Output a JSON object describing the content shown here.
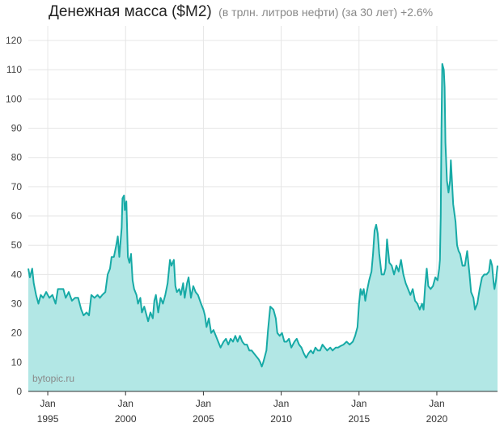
{
  "chart_data": {
    "type": "area",
    "title": "Денежная масса ($M2)",
    "subtitle": "(в трлн. литров нефти) (за 30 лет) +2.6%",
    "watermark": "bytopic.ru",
    "ylim": [
      0,
      125
    ],
    "y_ticks": [
      0,
      10,
      20,
      30,
      40,
      50,
      60,
      70,
      80,
      90,
      100,
      110,
      120
    ],
    "xlim": [
      1993.75,
      2023.9
    ],
    "x_ticks": [
      {
        "x": 1995,
        "month": "Jan",
        "year": "1995"
      },
      {
        "x": 2000,
        "month": "Jan",
        "year": "2000"
      },
      {
        "x": 2005,
        "month": "Jan",
        "year": "2005"
      },
      {
        "x": 2010,
        "month": "Jan",
        "year": "2010"
      },
      {
        "x": 2015,
        "month": "Jan",
        "year": "2015"
      },
      {
        "x": 2020,
        "month": "Jan",
        "year": "2020"
      }
    ],
    "grid": true,
    "colors": {
      "line": "#17aaa6",
      "fill": "#b2e7e5",
      "grid": "#e6e6e6",
      "axis": "#333333"
    },
    "points": [
      [
        1993.75,
        42
      ],
      [
        1993.85,
        39
      ],
      [
        1994.0,
        42
      ],
      [
        1994.1,
        37
      ],
      [
        1994.25,
        33
      ],
      [
        1994.4,
        30
      ],
      [
        1994.55,
        33
      ],
      [
        1994.7,
        32
      ],
      [
        1994.9,
        34
      ],
      [
        1995.1,
        32
      ],
      [
        1995.3,
        33
      ],
      [
        1995.5,
        30
      ],
      [
        1995.65,
        35
      ],
      [
        1995.85,
        35
      ],
      [
        1996.0,
        35
      ],
      [
        1996.15,
        32
      ],
      [
        1996.35,
        34
      ],
      [
        1996.55,
        31
      ],
      [
        1996.75,
        32
      ],
      [
        1996.95,
        32
      ],
      [
        1997.15,
        28
      ],
      [
        1997.3,
        26
      ],
      [
        1997.5,
        27
      ],
      [
        1997.65,
        26
      ],
      [
        1997.8,
        33
      ],
      [
        1998.0,
        32
      ],
      [
        1998.2,
        33
      ],
      [
        1998.35,
        32
      ],
      [
        1998.5,
        33
      ],
      [
        1998.7,
        34
      ],
      [
        1998.85,
        40
      ],
      [
        1999.0,
        42
      ],
      [
        1999.1,
        46
      ],
      [
        1999.25,
        46
      ],
      [
        1999.4,
        50
      ],
      [
        1999.5,
        53
      ],
      [
        1999.6,
        46
      ],
      [
        1999.75,
        56
      ],
      [
        1999.8,
        66
      ],
      [
        1999.9,
        67
      ],
      [
        1999.95,
        62
      ],
      [
        2000.05,
        65
      ],
      [
        2000.15,
        46
      ],
      [
        2000.25,
        44
      ],
      [
        2000.35,
        47
      ],
      [
        2000.45,
        38
      ],
      [
        2000.55,
        35
      ],
      [
        2000.7,
        33
      ],
      [
        2000.8,
        30
      ],
      [
        2000.95,
        32
      ],
      [
        2001.05,
        27
      ],
      [
        2001.2,
        29
      ],
      [
        2001.35,
        26
      ],
      [
        2001.45,
        24
      ],
      [
        2001.6,
        27
      ],
      [
        2001.75,
        25
      ],
      [
        2001.85,
        31
      ],
      [
        2001.95,
        33
      ],
      [
        2002.1,
        27
      ],
      [
        2002.25,
        32
      ],
      [
        2002.4,
        30
      ],
      [
        2002.55,
        33
      ],
      [
        2002.7,
        37
      ],
      [
        2002.85,
        45
      ],
      [
        2002.95,
        43
      ],
      [
        2003.1,
        45
      ],
      [
        2003.2,
        36
      ],
      [
        2003.3,
        34
      ],
      [
        2003.45,
        35
      ],
      [
        2003.55,
        33
      ],
      [
        2003.7,
        37
      ],
      [
        2003.8,
        32
      ],
      [
        2003.95,
        37
      ],
      [
        2004.05,
        39
      ],
      [
        2004.2,
        32
      ],
      [
        2004.35,
        36
      ],
      [
        2004.5,
        34
      ],
      [
        2004.65,
        33
      ],
      [
        2004.85,
        30
      ],
      [
        2005.0,
        28
      ],
      [
        2005.1,
        26
      ],
      [
        2005.2,
        22
      ],
      [
        2005.35,
        25
      ],
      [
        2005.5,
        20
      ],
      [
        2005.65,
        21
      ],
      [
        2005.8,
        19
      ],
      [
        2005.95,
        17
      ],
      [
        2006.1,
        15
      ],
      [
        2006.3,
        17
      ],
      [
        2006.45,
        18
      ],
      [
        2006.6,
        16
      ],
      [
        2006.75,
        18
      ],
      [
        2006.9,
        17
      ],
      [
        2007.05,
        19
      ],
      [
        2007.2,
        17
      ],
      [
        2007.35,
        19
      ],
      [
        2007.5,
        17
      ],
      [
        2007.65,
        16
      ],
      [
        2007.8,
        16
      ],
      [
        2007.95,
        14
      ],
      [
        2008.1,
        14
      ],
      [
        2008.25,
        13
      ],
      [
        2008.4,
        12
      ],
      [
        2008.55,
        11
      ],
      [
        2008.65,
        10
      ],
      [
        2008.75,
        8.5
      ],
      [
        2008.85,
        10
      ],
      [
        2008.95,
        12
      ],
      [
        2009.05,
        14
      ],
      [
        2009.15,
        21
      ],
      [
        2009.3,
        29
      ],
      [
        2009.5,
        28
      ],
      [
        2009.65,
        25
      ],
      [
        2009.75,
        20
      ],
      [
        2009.9,
        19
      ],
      [
        2010.05,
        20
      ],
      [
        2010.2,
        17
      ],
      [
        2010.35,
        17
      ],
      [
        2010.5,
        18
      ],
      [
        2010.65,
        15
      ],
      [
        2010.85,
        17
      ],
      [
        2011.0,
        18
      ],
      [
        2011.15,
        16
      ],
      [
        2011.3,
        15
      ],
      [
        2011.45,
        13
      ],
      [
        2011.6,
        11.5
      ],
      [
        2011.75,
        13
      ],
      [
        2011.9,
        14
      ],
      [
        2012.05,
        13
      ],
      [
        2012.2,
        15
      ],
      [
        2012.35,
        14
      ],
      [
        2012.5,
        14
      ],
      [
        2012.65,
        16
      ],
      [
        2012.8,
        15
      ],
      [
        2012.95,
        14
      ],
      [
        2013.15,
        15
      ],
      [
        2013.3,
        14
      ],
      [
        2013.5,
        15
      ],
      [
        2013.65,
        15
      ],
      [
        2013.8,
        15.5
      ],
      [
        2014.0,
        16
      ],
      [
        2014.2,
        17
      ],
      [
        2014.4,
        16
      ],
      [
        2014.6,
        17
      ],
      [
        2014.75,
        19
      ],
      [
        2014.9,
        22
      ],
      [
        2015.0,
        30
      ],
      [
        2015.1,
        35
      ],
      [
        2015.2,
        33
      ],
      [
        2015.3,
        35
      ],
      [
        2015.4,
        31
      ],
      [
        2015.5,
        34
      ],
      [
        2015.65,
        38
      ],
      [
        2015.8,
        41
      ],
      [
        2015.9,
        47
      ],
      [
        2016.0,
        55
      ],
      [
        2016.1,
        57
      ],
      [
        2016.2,
        54
      ],
      [
        2016.3,
        47
      ],
      [
        2016.45,
        40
      ],
      [
        2016.6,
        40
      ],
      [
        2016.7,
        42
      ],
      [
        2016.8,
        52
      ],
      [
        2016.95,
        44
      ],
      [
        2017.1,
        43
      ],
      [
        2017.25,
        40
      ],
      [
        2017.4,
        43
      ],
      [
        2017.55,
        41
      ],
      [
        2017.7,
        45
      ],
      [
        2017.85,
        40
      ],
      [
        2018.0,
        37
      ],
      [
        2018.15,
        35
      ],
      [
        2018.3,
        33
      ],
      [
        2018.45,
        35
      ],
      [
        2018.6,
        31
      ],
      [
        2018.75,
        30
      ],
      [
        2018.9,
        28
      ],
      [
        2019.05,
        30
      ],
      [
        2019.15,
        28
      ],
      [
        2019.25,
        36
      ],
      [
        2019.35,
        42
      ],
      [
        2019.45,
        36
      ],
      [
        2019.6,
        35
      ],
      [
        2019.75,
        36
      ],
      [
        2019.9,
        39
      ],
      [
        2020.05,
        38
      ],
      [
        2020.15,
        42
      ],
      [
        2020.2,
        45
      ],
      [
        2020.25,
        60
      ],
      [
        2020.3,
        90
      ],
      [
        2020.35,
        112
      ],
      [
        2020.45,
        110
      ],
      [
        2020.5,
        104
      ],
      [
        2020.55,
        85
      ],
      [
        2020.65,
        72
      ],
      [
        2020.75,
        68
      ],
      [
        2020.85,
        72
      ],
      [
        2020.9,
        79
      ],
      [
        2020.95,
        74
      ],
      [
        2021.05,
        64
      ],
      [
        2021.2,
        58
      ],
      [
        2021.3,
        50
      ],
      [
        2021.4,
        48
      ],
      [
        2021.5,
        47
      ],
      [
        2021.65,
        43
      ],
      [
        2021.8,
        43
      ],
      [
        2021.95,
        48
      ],
      [
        2022.1,
        40
      ],
      [
        2022.2,
        34
      ],
      [
        2022.35,
        32
      ],
      [
        2022.45,
        28
      ],
      [
        2022.6,
        30
      ],
      [
        2022.75,
        35
      ],
      [
        2022.9,
        39
      ],
      [
        2023.05,
        40
      ],
      [
        2023.2,
        40
      ],
      [
        2023.35,
        41
      ],
      [
        2023.45,
        45
      ],
      [
        2023.55,
        43
      ],
      [
        2023.65,
        37
      ],
      [
        2023.7,
        35
      ],
      [
        2023.8,
        38
      ],
      [
        2023.9,
        43
      ]
    ]
  }
}
